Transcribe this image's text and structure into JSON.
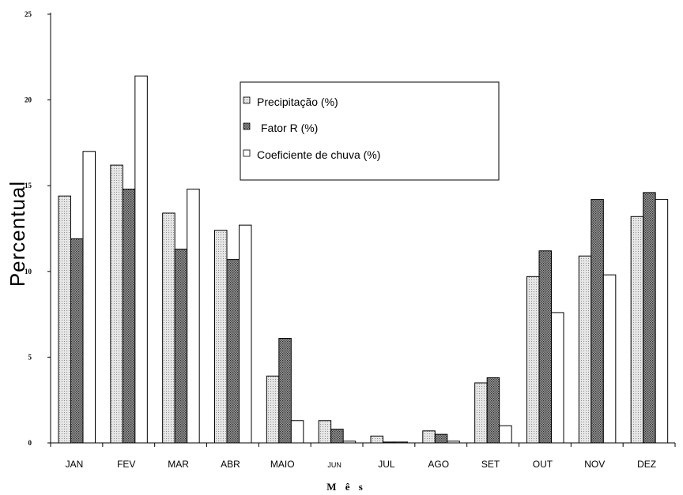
{
  "chart_data": {
    "type": "bar",
    "title": "",
    "xlabel": "M ê s",
    "ylabel": "Percentual",
    "ylim": [
      0,
      25
    ],
    "yticks": [
      "0",
      "5",
      "10",
      "15",
      "20",
      "25"
    ],
    "grid": false,
    "legend_position": "top-center",
    "categories": [
      "JAN",
      "FEV",
      "MAR",
      "ABR",
      "MAIO",
      "JUN",
      "JUL",
      "AGO",
      "SET",
      "OUT",
      "NOV",
      "DEZ"
    ],
    "series": [
      {
        "name": "Precipitação (%)",
        "pattern": "light-dots",
        "values": [
          14.4,
          16.2,
          13.4,
          12.4,
          3.9,
          1.3,
          0.4,
          0.7,
          3.5,
          9.7,
          10.9,
          13.2
        ]
      },
      {
        "name": "Fator R (%)",
        "pattern": "dark-dots",
        "values": [
          11.9,
          14.8,
          11.3,
          10.7,
          6.1,
          0.8,
          0.05,
          0.5,
          3.8,
          11.2,
          14.2,
          14.6
        ]
      },
      {
        "name": "Coeficiente de chuva (%)",
        "pattern": "white",
        "values": [
          17.0,
          21.4,
          14.8,
          12.7,
          1.3,
          0.1,
          0.05,
          0.1,
          1.0,
          7.6,
          9.8,
          14.2
        ]
      }
    ]
  }
}
